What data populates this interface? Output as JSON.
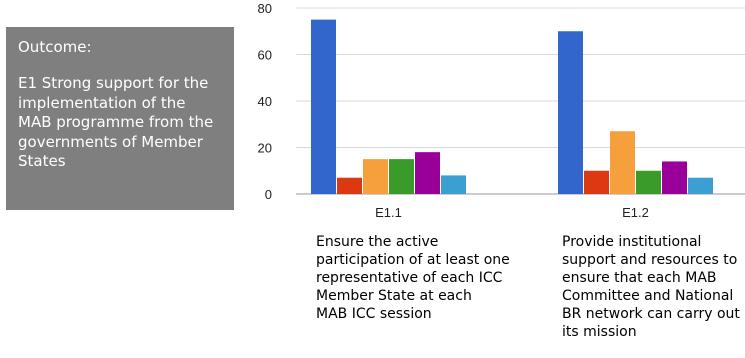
{
  "outcome": {
    "heading": "Outcome:",
    "text": "E1 Strong support for the implementation of the MAB programme from the governments of Member States"
  },
  "chart_data": {
    "type": "bar",
    "categories": [
      "E1.1",
      "E1.2"
    ],
    "ylim": [
      0,
      80
    ],
    "yticks": [
      0,
      20,
      40,
      60,
      80
    ],
    "grid": true,
    "legend": "none",
    "series": [
      {
        "color": "#3366cc",
        "values": [
          75,
          70
        ]
      },
      {
        "color": "#dc3912",
        "values": [
          7,
          10
        ]
      },
      {
        "color": "#f5a03c",
        "values": [
          15,
          27
        ]
      },
      {
        "color": "#3a9a2a",
        "values": [
          15,
          10
        ]
      },
      {
        "color": "#990099",
        "values": [
          18,
          14
        ]
      },
      {
        "color": "#3b9fd1",
        "values": [
          8,
          7
        ]
      }
    ]
  },
  "descriptions": [
    {
      "lines": [
        "Ensure the active",
        "participation of at least one",
        "representative of each ICC",
        "Member State at each",
        "MAB ICC session"
      ]
    },
    {
      "lines": [
        "Provide institutional",
        "support and resources to",
        "ensure that each MAB",
        "Committee and National",
        "BR network can carry out",
        "its mission"
      ]
    }
  ]
}
